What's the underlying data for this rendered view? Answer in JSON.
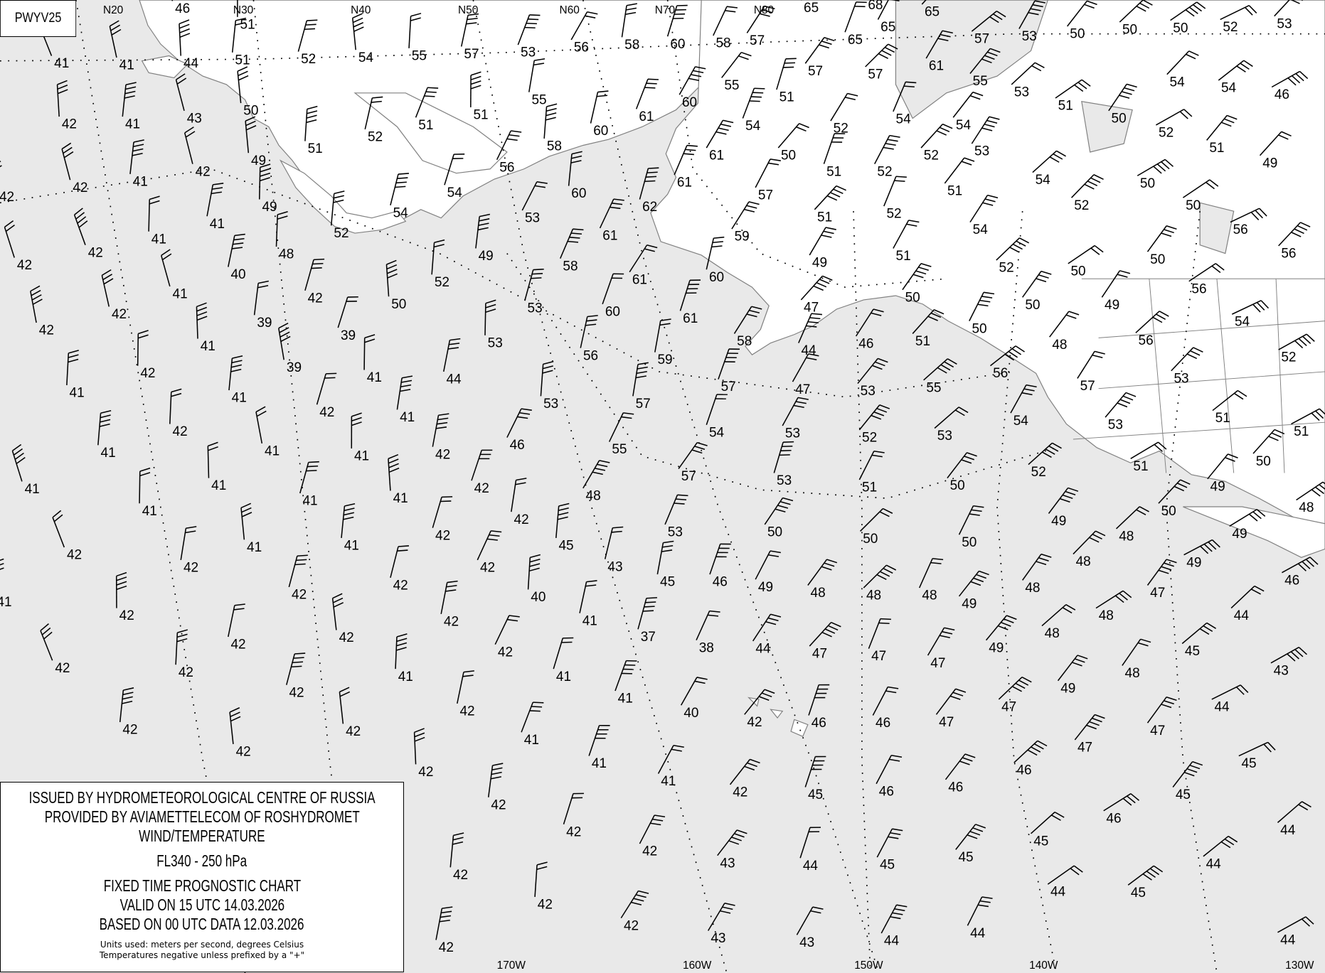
{
  "chart_code": "PWYV25",
  "colors": {
    "sea": "#e9e9e9",
    "land": "#ffffff",
    "coastline": "#808080",
    "text": "#000000"
  },
  "grid_labels": {
    "latitude_top": [
      "N20",
      "N30",
      "N40",
      "N50",
      "N60",
      "N70",
      "N80"
    ],
    "longitude_bottom": [
      "170W",
      "160W",
      "150W",
      "140W",
      "130W"
    ]
  },
  "legend": {
    "issuer": "ISSUED BY HYDROMETEOROLOGICAL CENTRE OF RUSSIA",
    "provider": "PROVIDED BY AVIAMETTELECOM OF ROSHYDROMET",
    "product": "WIND/TEMPERATURE",
    "level": "FL340 - 250 hPa",
    "chart_type": "FIXED TIME PROGNOSTIC CHART",
    "valid": "VALID ON 15 UTC 14.03.2026",
    "based_on": "BASED ON 00 UTC DATA 12.03.2026",
    "units": "Units used: meters per second, degrees Celsius",
    "note": "Temperatures negative unless prefixed by a \"+\""
  },
  "temperatures": [
    "41",
    "41",
    "44",
    "51",
    "52",
    "54",
    "55",
    "57",
    "53",
    "56",
    "58",
    "60",
    "58",
    "57",
    "65",
    "65",
    "65",
    "68",
    "65",
    "57",
    "53",
    "50",
    "50",
    "50",
    "52",
    "53",
    "46",
    "51",
    "42",
    "41",
    "43",
    "50",
    "51",
    "52",
    "51",
    "51",
    "55",
    "61",
    "60",
    "55",
    "51",
    "54",
    "52",
    "57",
    "57",
    "54",
    "61",
    "55",
    "53",
    "51",
    "50",
    "54",
    "54",
    "46",
    "52",
    "51",
    "53",
    "54",
    "52",
    "41",
    "42",
    "49",
    "49",
    "54",
    "56",
    "58",
    "60",
    "61",
    "61",
    "50",
    "51",
    "52",
    "51",
    "54",
    "50",
    "49",
    "42",
    "42",
    "41",
    "41",
    "42",
    "42",
    "52",
    "54",
    "53",
    "60",
    "62",
    "57",
    "59",
    "51",
    "52",
    "54",
    "52",
    "50",
    "56",
    "56",
    "51",
    "49",
    "52",
    "50",
    "50",
    "49",
    "48",
    "61",
    "40",
    "41",
    "42",
    "42",
    "39",
    "42",
    "50",
    "52",
    "53",
    "58",
    "61",
    "60",
    "61",
    "60",
    "58",
    "47",
    "49",
    "50",
    "50",
    "56",
    "54",
    "50",
    "48",
    "56",
    "52",
    "39",
    "53",
    "44",
    "46",
    "51",
    "56",
    "59",
    "56",
    "41",
    "42",
    "41",
    "39",
    "41",
    "44",
    "41",
    "42",
    "53",
    "57",
    "47",
    "53",
    "55",
    "57",
    "53",
    "41",
    "42",
    "46",
    "57",
    "54",
    "53",
    "52",
    "53",
    "54",
    "53",
    "51",
    "51",
    "41",
    "41",
    "41",
    "42",
    "55",
    "57",
    "53",
    "51",
    "50",
    "52",
    "51",
    "50",
    "41",
    "41",
    "42",
    "48",
    "49",
    "50",
    "48",
    "41",
    "41",
    "41",
    "42",
    "53",
    "50",
    "50",
    "50",
    "49",
    "48",
    "49",
    "49",
    "42",
    "41",
    "41",
    "42",
    "42",
    "45",
    "43",
    "48",
    "46",
    "42",
    "45",
    "46",
    "49",
    "48",
    "48",
    "48",
    "48",
    "49",
    "42",
    "42",
    "40",
    "41",
    "42",
    "42",
    "42",
    "42",
    "37",
    "38",
    "44",
    "47",
    "47",
    "47",
    "49",
    "48",
    "48",
    "47",
    "44",
    "45",
    "43",
    "42",
    "42",
    "41",
    "41",
    "42",
    "42",
    "48",
    "49",
    "41",
    "40",
    "42",
    "46",
    "46",
    "47",
    "47",
    "44",
    "47",
    "47",
    "42",
    "41",
    "42",
    "42",
    "42",
    "41",
    "41",
    "42",
    "45",
    "46",
    "46",
    "46",
    "45",
    "42",
    "42",
    "42",
    "42",
    "43",
    "44",
    "45",
    "45",
    "45",
    "46",
    "45",
    "44",
    "44",
    "45",
    "44",
    "44",
    "44",
    "43",
    "43",
    "42",
    "42",
    "42",
    "42",
    "44",
    "41"
  ]
}
